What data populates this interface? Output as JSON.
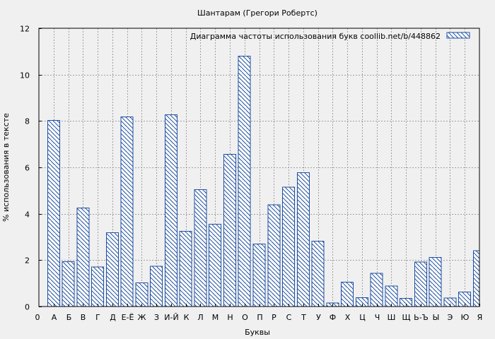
{
  "chart_data": {
    "type": "bar",
    "title": "Шантарам (Грегори Робертс)",
    "xlabel": "Буквы",
    "ylabel": "% использования в тексте",
    "ylim": [
      0,
      12
    ],
    "yticks": [
      0,
      2,
      4,
      6,
      8,
      10,
      12
    ],
    "grid": true,
    "legend_position": "top-right",
    "x_axis_start_label": "0",
    "categories": [
      "А",
      "Б",
      "В",
      "Г",
      "Д",
      "Е-Ё",
      "Ж",
      "З",
      "И-Й",
      "К",
      "Л",
      "М",
      "Н",
      "О",
      "П",
      "Р",
      "С",
      "Т",
      "У",
      "Ф",
      "Х",
      "Ц",
      "Ч",
      "Ш",
      "Щ",
      "Ь-Ъ",
      "Ы",
      "Э",
      "Ю",
      "Я"
    ],
    "series": [
      {
        "name": "Диаграмма частоты использования букв  coollib.net/b/448862",
        "color": "#1f4fa0",
        "values": [
          8.02,
          1.94,
          4.25,
          1.7,
          3.19,
          8.18,
          1.02,
          1.73,
          8.27,
          3.25,
          5.04,
          3.55,
          6.57,
          10.8,
          2.7,
          4.38,
          5.14,
          5.77,
          2.82,
          0.15,
          1.05,
          0.38,
          1.43,
          0.88,
          0.35,
          1.92,
          2.12,
          0.36,
          0.63,
          2.4
        ]
      }
    ]
  }
}
